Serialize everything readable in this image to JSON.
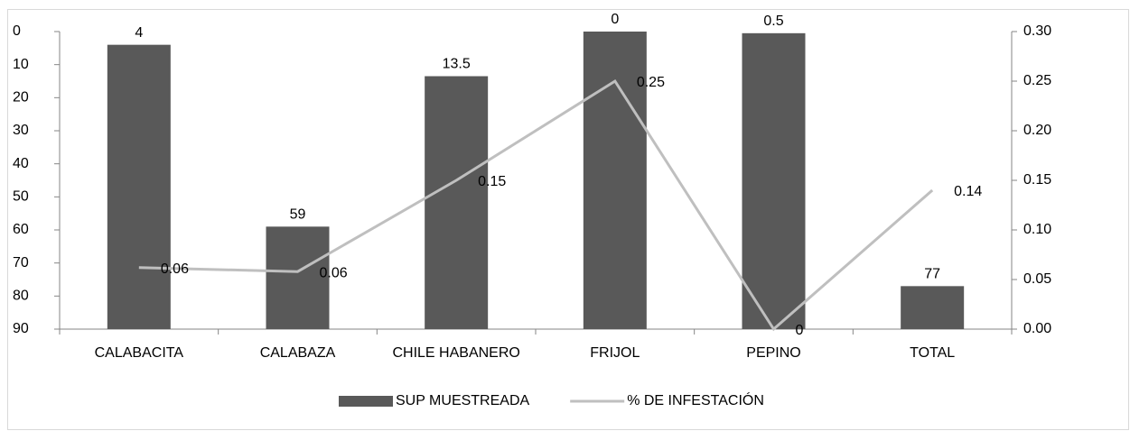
{
  "chart_data": {
    "type": "bar-line",
    "categories": [
      "CALABACITA",
      "CALABAZA",
      "CHILE HABANERO",
      "FRIJOL",
      "PEPINO",
      "TOTAL"
    ],
    "series": [
      {
        "name": "SUP MUESTREADA",
        "type": "bar",
        "color": "#595959",
        "values": [
          4,
          59,
          13.5,
          0,
          0.5,
          77
        ]
      },
      {
        "name": "% DE INFESTACIÓN",
        "type": "line",
        "axis": "y2",
        "color": "#bfbfbf",
        "values": [
          0.062,
          0.058,
          0.15,
          0.25,
          0,
          0.14
        ],
        "value_labels": [
          "0.06",
          "0.06",
          "0.15",
          "0.25",
          "0",
          "0.14"
        ]
      }
    ],
    "ylim": [
      0,
      90
    ],
    "yreversed": true,
    "yticks": [
      0,
      10,
      20,
      30,
      40,
      50,
      60,
      70,
      80,
      90
    ],
    "y2lim": [
      0,
      0.3
    ],
    "y2ticks": [
      {
        "value": 0,
        "label": "0.00"
      },
      {
        "value": 0.05,
        "label": "0.05"
      },
      {
        "value": 0.1,
        "label": "0.10"
      },
      {
        "value": 0.15,
        "label": "0.15"
      },
      {
        "value": 0.2,
        "label": "0.20"
      },
      {
        "value": 0.25,
        "label": "0.25"
      },
      {
        "value": 0.3,
        "label": "0.30"
      }
    ],
    "legend": "bottom"
  }
}
